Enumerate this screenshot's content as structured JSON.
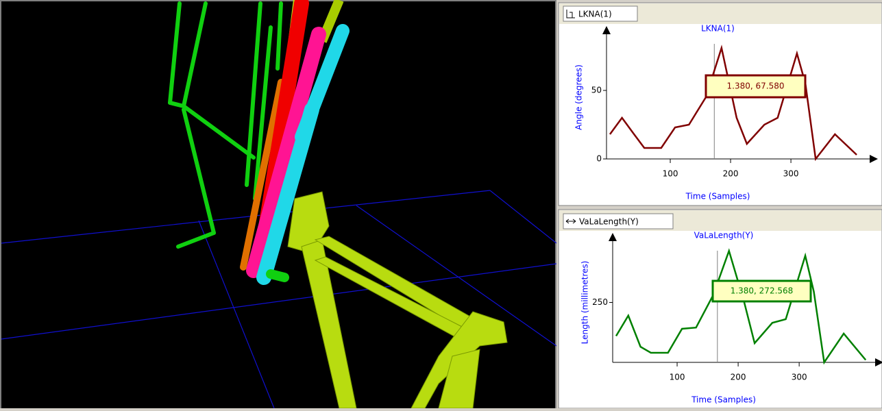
{
  "chart_data": [
    {
      "type": "line",
      "panel_title": "LKNA(1)",
      "title": "LKNA(1)",
      "x_label": "Time (Samples)",
      "y_label": "Angle (degrees)",
      "x": [
        0,
        20,
        40,
        57,
        85,
        108,
        131,
        159,
        185,
        210,
        227,
        256,
        278,
        310,
        324,
        341,
        373,
        409
      ],
      "series": [
        {
          "color": "#800000",
          "values": [
            18,
            30,
            18,
            8,
            8,
            23,
            25,
            45,
            81,
            30,
            11,
            25,
            30,
            77,
            55,
            0,
            18,
            3
          ]
        }
      ],
      "xlim": [
        0,
        426
      ],
      "ylim": [
        0,
        90
      ],
      "xticks": [
        100,
        200,
        300
      ],
      "yticks": [
        0,
        50
      ],
      "cursor_x": 173,
      "tooltip": "1.380, 67.580"
    },
    {
      "type": "line",
      "panel_title": "VaLaLength(Y)",
      "title": "VaLaLength(Y)",
      "x_label": "Time (Samples)",
      "y_label": "Length (millimetres)",
      "x": [
        0,
        20,
        40,
        57,
        85,
        108,
        131,
        159,
        185,
        210,
        227,
        256,
        278,
        310,
        324,
        341,
        373,
        409
      ],
      "series": [
        {
          "color": "#008000",
          "values": [
            222,
            239,
            213,
            208,
            208,
            228,
            229,
            256,
            293,
            250,
            216,
            233,
            236,
            289,
            259,
            200,
            224,
            202
          ]
        }
      ],
      "xlim": [
        0,
        420
      ],
      "ylim": [
        200,
        300
      ],
      "xticks": [
        100,
        200,
        300
      ],
      "yticks": [
        250
      ],
      "cursor_x": 166,
      "tooltip": "1.380, 272.568"
    }
  ]
}
